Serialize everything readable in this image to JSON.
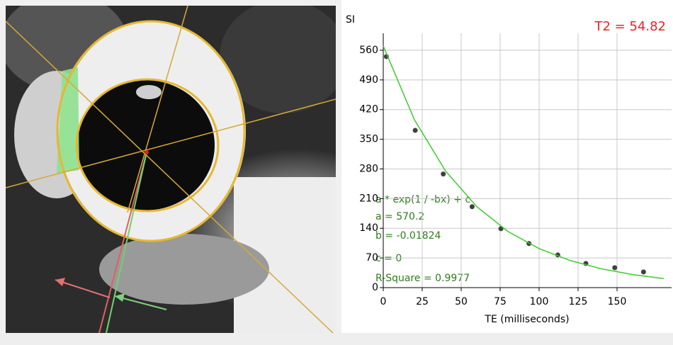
{
  "chart_data": {
    "type": "scatter",
    "y_label": "SI",
    "x_label": "TE (milliseconds)",
    "annotation": "T2  = 54.82",
    "fit_text": [
      "a * exp(1 / -bx) + c",
      "a = 570.2",
      "b = -0.01824",
      "c = 0",
      "R-Square = 0.9977"
    ],
    "xlim": [
      0,
      185
    ],
    "ylim": [
      0,
      600
    ],
    "xticks": [
      0,
      25,
      50,
      75,
      100,
      125,
      150
    ],
    "yticks": [
      0,
      70,
      140,
      210,
      280,
      350,
      420,
      490,
      560
    ],
    "grid": true,
    "series": [
      {
        "color": "#404040",
        "x": [
          2,
          20.5,
          38.5,
          57,
          75.5,
          93.5,
          112,
          130,
          148.5,
          167
        ],
        "values": [
          545,
          371,
          268,
          191,
          139,
          104,
          77,
          57,
          47,
          37
        ]
      },
      {
        "color": "#3ccc2a",
        "x": [
          0,
          20,
          40,
          60,
          80,
          100,
          120,
          140,
          160,
          180
        ],
        "values": [
          570,
          396,
          275,
          191,
          132.5,
          92,
          63.9,
          44.4,
          30.8,
          21.4
        ]
      }
    ]
  }
}
